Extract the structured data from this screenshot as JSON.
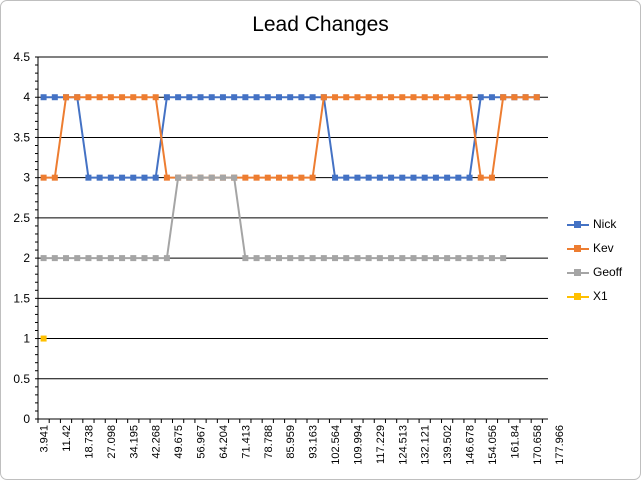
{
  "chart_data": {
    "type": "line",
    "title": "Lead Changes",
    "xlabel": "",
    "ylabel": "",
    "ylim": [
      0,
      4.5
    ],
    "yticks": [
      "0",
      "0.5",
      "1",
      "1.5",
      "2",
      "2.5",
      "3",
      "3.5",
      "4",
      "4.5"
    ],
    "xtick_labels": [
      "3.941",
      "11.42",
      "18.738",
      "27.098",
      "34.195",
      "42.268",
      "49.675",
      "56.967",
      "64.204",
      "71.413",
      "78.788",
      "85.959",
      "93.163",
      "102.564",
      "109.994",
      "117.229",
      "124.513",
      "132.121",
      "139.502",
      "146.678",
      "154.056",
      "161.84",
      "170.658",
      "177.966"
    ],
    "grid": "horizontal",
    "legend_position": "right",
    "series": [
      {
        "name": "Nick",
        "color": "#4472C4",
        "values": [
          4,
          4,
          4,
          4,
          3,
          3,
          3,
          3,
          3,
          3,
          3,
          4,
          4,
          4,
          4,
          4,
          4,
          4,
          4,
          4,
          4,
          4,
          4,
          4,
          4,
          4,
          3,
          3,
          3,
          3,
          3,
          3,
          3,
          3,
          3,
          3,
          3,
          3,
          3,
          4,
          4,
          4,
          4,
          4,
          4
        ]
      },
      {
        "name": "Kev",
        "color": "#ED7D31",
        "values": [
          3,
          3,
          4,
          4,
          4,
          4,
          4,
          4,
          4,
          4,
          4,
          3,
          3,
          3,
          3,
          3,
          3,
          3,
          3,
          3,
          3,
          3,
          3,
          3,
          3,
          4,
          4,
          4,
          4,
          4,
          4,
          4,
          4,
          4,
          4,
          4,
          4,
          4,
          4,
          3,
          3,
          4,
          4,
          4,
          4
        ]
      },
      {
        "name": "Geoff",
        "color": "#A5A5A5",
        "values": [
          2,
          2,
          2,
          2,
          2,
          2,
          2,
          2,
          2,
          2,
          2,
          2,
          3,
          3,
          3,
          3,
          3,
          3,
          2,
          2,
          2,
          2,
          2,
          2,
          2,
          2,
          2,
          2,
          2,
          2,
          2,
          2,
          2,
          2,
          2,
          2,
          2,
          2,
          2,
          2,
          2,
          2,
          null,
          null,
          null
        ]
      },
      {
        "name": "X1",
        "color": "#FFC000",
        "values": [
          1,
          null,
          null,
          null,
          null,
          null,
          null,
          null,
          null,
          null,
          null,
          null,
          null,
          null,
          null,
          null,
          null,
          null,
          null,
          null,
          null,
          null,
          null,
          null,
          null,
          null,
          null,
          null,
          null,
          null,
          null,
          null,
          null,
          null,
          null,
          null,
          null,
          null,
          null,
          null,
          null,
          null,
          null,
          null,
          null
        ]
      }
    ]
  }
}
